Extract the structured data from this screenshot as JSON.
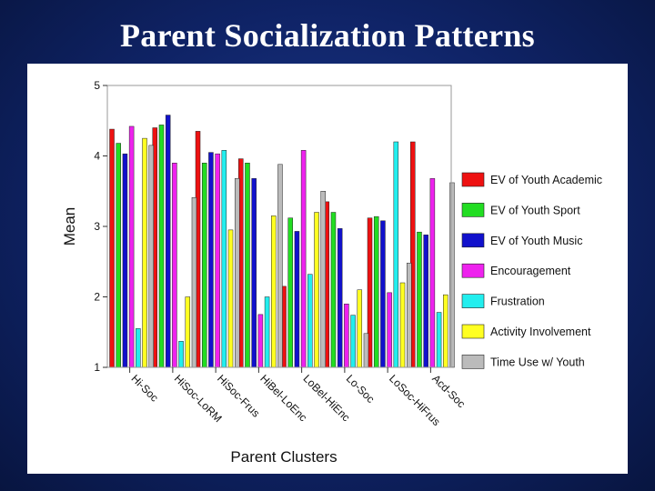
{
  "slide": {
    "title": "Parent Socialization Patterns"
  },
  "chart_data": {
    "type": "bar",
    "title": "",
    "xlabel": "Parent Clusters",
    "ylabel": "Mean",
    "ylim": [
      1,
      5
    ],
    "yticks": [
      "1",
      "2",
      "3",
      "4",
      "5"
    ],
    "legend_position": "right",
    "categories": [
      "Hi-Soc",
      "HiSoc-LoRM",
      "HiSoc-Frus",
      "HiBel-LoEnc",
      "LoBel-HiEnc",
      "Lo-Soc",
      "LoSoc-HiFrus",
      "Acd-Soc"
    ],
    "series": [
      {
        "name": "EV of Youth Academic",
        "color": "#ee1111",
        "values": [
          4.38,
          4.4,
          4.35,
          3.96,
          2.15,
          3.35,
          3.12,
          4.2
        ]
      },
      {
        "name": "EV of Youth Sport",
        "color": "#22dd22",
        "values": [
          4.18,
          4.44,
          3.9,
          3.9,
          3.12,
          3.2,
          3.14,
          2.92
        ]
      },
      {
        "name": "EV of Youth Music",
        "color": "#1111cc",
        "values": [
          4.03,
          4.58,
          4.05,
          3.68,
          2.93,
          2.97,
          3.08,
          2.88
        ]
      },
      {
        "name": "Encouragement",
        "color": "#ee22ee",
        "values": [
          4.42,
          3.9,
          4.03,
          1.75,
          4.08,
          1.9,
          2.06,
          3.68
        ]
      },
      {
        "name": "Frustration",
        "color": "#22eeee",
        "values": [
          1.55,
          1.37,
          4.08,
          2.0,
          2.32,
          1.74,
          4.2,
          1.78
        ]
      },
      {
        "name": "Activity Involvement",
        "color": "#ffff22",
        "values": [
          4.25,
          2.0,
          2.95,
          3.15,
          3.2,
          2.1,
          2.2,
          2.03
        ]
      },
      {
        "name": "Time Use w/ Youth",
        "color": "#bbbbbb",
        "values": [
          4.15,
          3.41,
          3.68,
          3.88,
          3.5,
          1.48,
          2.48,
          3.62
        ]
      }
    ]
  }
}
